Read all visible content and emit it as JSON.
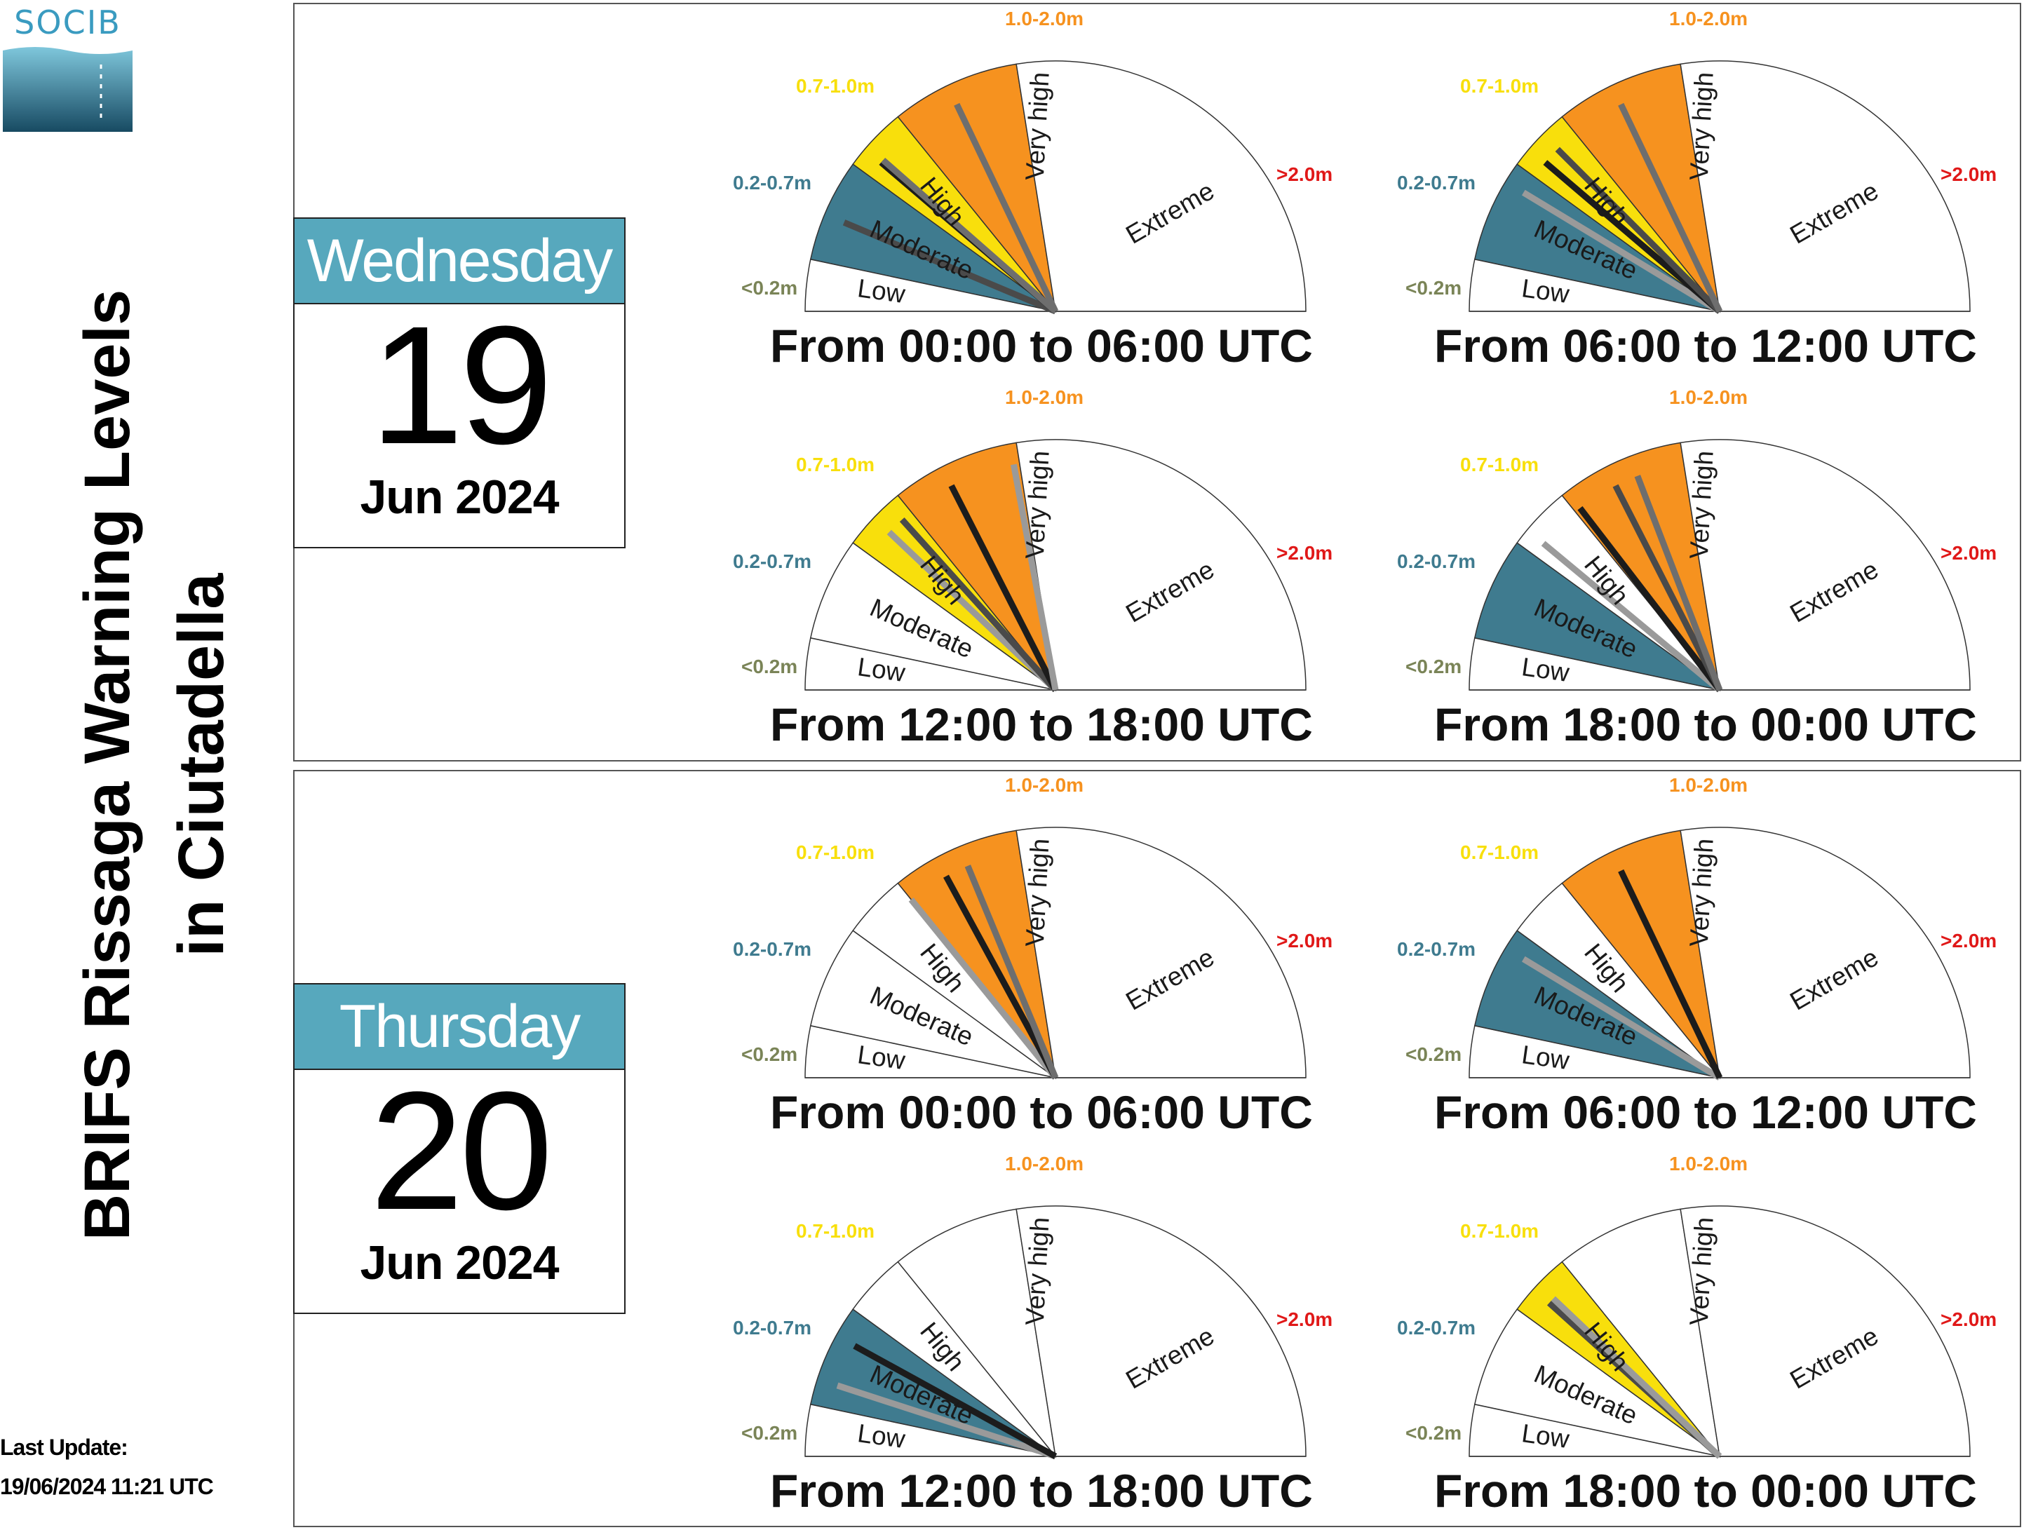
{
  "logo": {
    "text": "SOCIB"
  },
  "title": {
    "line1": "BRIFS Rissaga Warning Levels",
    "line2": "in Ciutadella"
  },
  "last_update": {
    "label": "Last Update:",
    "value": "19/06/2024 11:21 UTC"
  },
  "colors": {
    "low": "#ffffff",
    "moderate": "#3f7b8f",
    "high": "#f8df0c",
    "very_high": "#f6921f",
    "extreme": "#ffffff",
    "label_low": "#7a8457",
    "label_moderate": "#3f7b8f",
    "label_high": "#f8df0c",
    "label_very_high": "#f6921f",
    "label_extreme": "#e01818",
    "calendar_header": "#57a8bd"
  },
  "gauge_labels": {
    "ranges": [
      "<0.2m",
      "0.2-0.7m",
      "0.7-1.0m",
      "1.0-2.0m",
      ">2.0m"
    ],
    "levels": [
      "Low",
      "Moderate",
      "High",
      "Very high",
      "Extreme"
    ]
  },
  "days": [
    {
      "weekday": "Wednesday",
      "day": "19",
      "month_year": "Jun 2024",
      "periods": [
        {
          "label": "From 00:00 to 06:00 UTC",
          "highlighted": [
            1,
            2,
            3
          ],
          "needles": [
            {
              "value": 1.45,
              "shade": "dark"
            },
            {
              "value": 2.3,
              "shade": "black"
            },
            {
              "value": 2.35,
              "shade": "gray"
            },
            {
              "value": 3.45,
              "shade": "gray"
            }
          ]
        },
        {
          "label": "From 06:00 to 12:00 UTC",
          "highlighted": [
            1,
            2,
            3
          ],
          "needles": [
            {
              "value": 1.8,
              "shade": "light"
            },
            {
              "value": 2.3,
              "shade": "black"
            },
            {
              "value": 2.6,
              "shade": "dark"
            },
            {
              "value": 3.45,
              "shade": "gray"
            }
          ]
        },
        {
          "label": "From 12:00 to 18:00 UTC",
          "highlighted": [
            2,
            3
          ],
          "needles": [
            {
              "value": 2.5,
              "shade": "light"
            },
            {
              "value": 2.8,
              "shade": "dark"
            },
            {
              "value": 3.4,
              "shade": "black"
            },
            {
              "value": 3.95,
              "shade": "light"
            }
          ]
        },
        {
          "label": "From 18:00 to 00:00 UTC",
          "highlighted": [
            1,
            3
          ],
          "needles": [
            {
              "value": 2.25,
              "shade": "light"
            },
            {
              "value": 3.05,
              "shade": "black"
            },
            {
              "value": 3.4,
              "shade": "dark"
            },
            {
              "value": 3.6,
              "shade": "gray"
            }
          ]
        }
      ]
    },
    {
      "weekday": "Thursday",
      "day": "20",
      "month_year": "Jun 2024",
      "periods": [
        {
          "label": "From 00:00 to 06:00 UTC",
          "highlighted": [
            3
          ],
          "needles": [
            {
              "value": 3.0,
              "shade": "light"
            },
            {
              "value": 3.35,
              "shade": "black"
            },
            {
              "value": 3.55,
              "shade": "gray"
            }
          ]
        },
        {
          "label": "From 06:00 to 12:00 UTC",
          "highlighted": [
            1,
            3
          ],
          "needles": [
            {
              "value": 1.8,
              "shade": "light"
            },
            {
              "value": 3.45,
              "shade": "black"
            }
          ]
        },
        {
          "label": "From 12:00 to 18:00 UTC",
          "highlighted": [
            1
          ],
          "needles": [
            {
              "value": 1.25,
              "shade": "light"
            },
            {
              "value": 1.7,
              "shade": "black"
            }
          ]
        },
        {
          "label": "From 18:00 to 00:00 UTC",
          "highlighted": [
            2
          ],
          "needles": [
            {
              "value": 2.4,
              "shade": "dark"
            },
            {
              "value": 2.5,
              "shade": "light"
            }
          ]
        }
      ]
    }
  ]
}
